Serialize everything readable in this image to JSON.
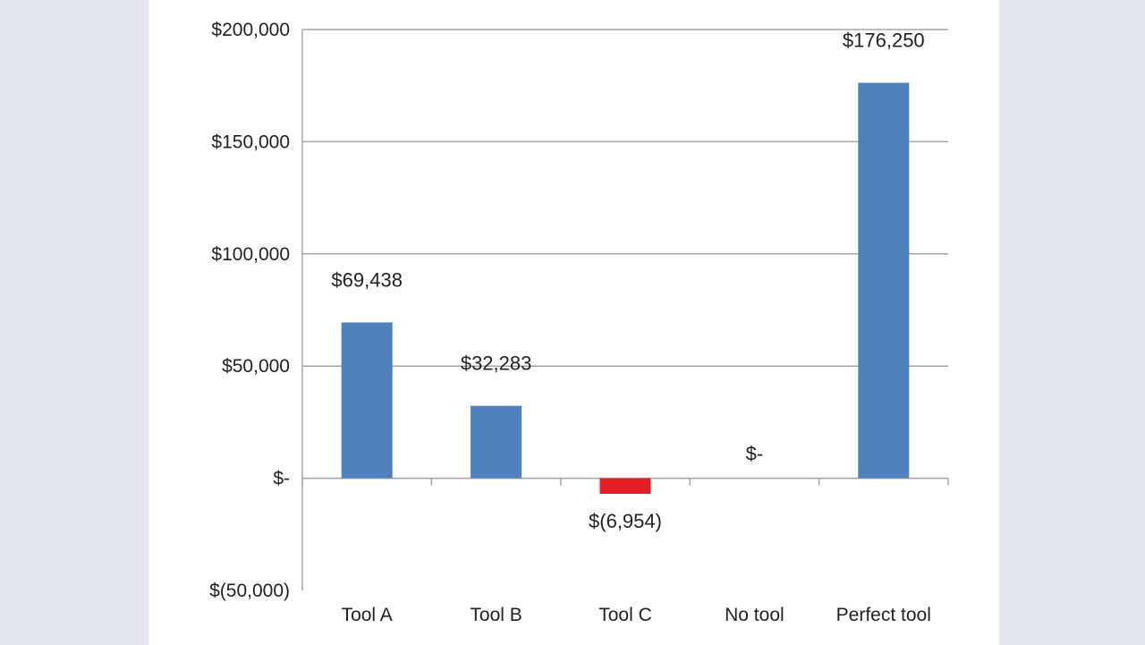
{
  "chart_data": {
    "type": "bar",
    "title": "",
    "xlabel": "",
    "ylabel": "",
    "categories": [
      "Tool A",
      "Tool B",
      "Tool C",
      "No tool",
      "Perfect tool"
    ],
    "values": [
      69438,
      32283,
      -6954,
      0,
      176250
    ],
    "data_labels": [
      "$69,438",
      "$32,283",
      "$(6,954)",
      "$-",
      "$176,250"
    ],
    "ylim": [
      -50000,
      200000
    ],
    "y_ticks": [
      200000,
      150000,
      100000,
      50000,
      0,
      -50000
    ],
    "y_tick_labels": [
      "$200,000",
      "$150,000",
      "$100,000",
      "$50,000",
      "$-",
      "$(50,000)"
    ],
    "grid": true,
    "legend": "none",
    "colors": {
      "positive": "#4f81bd",
      "negative": "#e21f26",
      "gridline": "#a6a6a6",
      "axis": "#a6a6a6",
      "background": "#ffffff",
      "page_margin": "#e4e6eb"
    }
  }
}
